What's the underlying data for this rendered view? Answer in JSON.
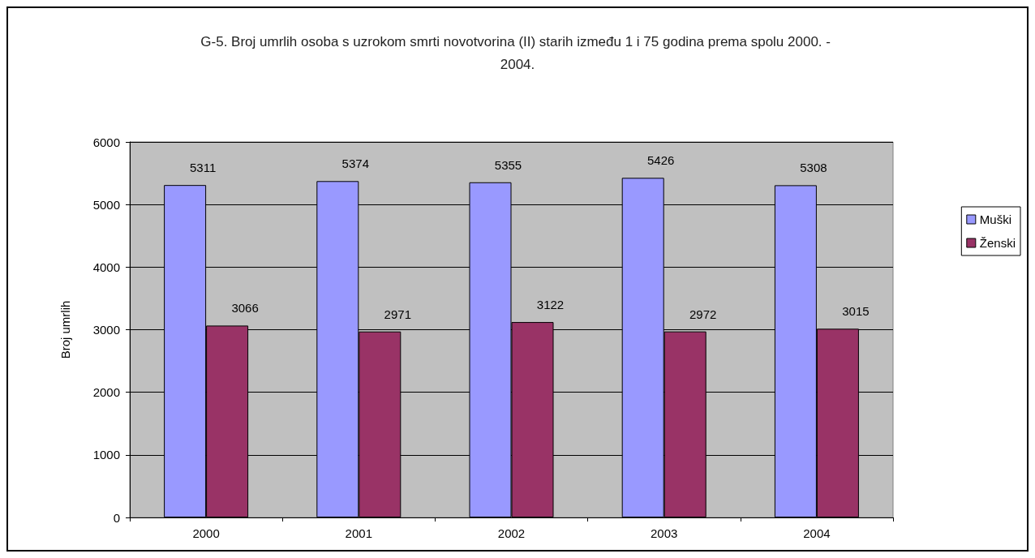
{
  "chart_data": {
    "type": "bar",
    "title": "G-5. Broj umrlih osoba s uzrokom smrti novotvorina (II) starih između 1 i 75 godina prema spolu 2000. - 2004.",
    "ylabel": "Broj umrlih",
    "categories": [
      "2000",
      "2001",
      "2002",
      "2003",
      "2004"
    ],
    "series": [
      {
        "name": "Muški",
        "color": "#9999ff",
        "values": [
          5311,
          5374,
          5355,
          5426,
          5308
        ]
      },
      {
        "name": "Ženski",
        "color": "#993366",
        "values": [
          3066,
          2971,
          3122,
          2972,
          3015
        ]
      }
    ],
    "ylim": [
      0,
      6000
    ],
    "yticks": [
      0,
      1000,
      2000,
      3000,
      4000,
      5000,
      6000
    ],
    "grid": "y",
    "legend": "right",
    "data_labels": true
  }
}
